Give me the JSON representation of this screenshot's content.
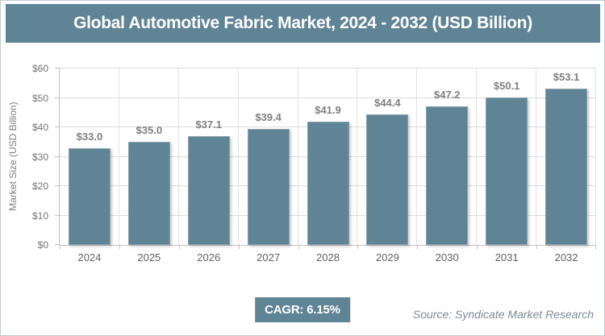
{
  "header": {
    "title": "Global Automotive Fabric Market, 2024 - 2032 (USD Billion)"
  },
  "chart_data": {
    "type": "bar",
    "title": "Global Automotive Fabric Market, 2024 - 2032 (USD Billion)",
    "categories": [
      "2024",
      "2025",
      "2026",
      "2027",
      "2028",
      "2029",
      "2030",
      "2031",
      "2032"
    ],
    "values": [
      33.0,
      35.0,
      37.1,
      39.4,
      41.9,
      44.4,
      47.2,
      50.1,
      53.1
    ],
    "bar_labels": [
      "$33.0",
      "$35.0",
      "$37.1",
      "$39.4",
      "$41.9",
      "$44.4",
      "$47.2",
      "$50.1",
      "$53.1"
    ],
    "xlabel": "",
    "ylabel": "Market Size (USD Billion)",
    "ylim": [
      0,
      60
    ],
    "y_tick_step": 10,
    "y_tick_labels": [
      "$0",
      "$10",
      "$20",
      "$30",
      "$40",
      "$50",
      "$60"
    ],
    "grid": true,
    "legend": "none",
    "bar_color": "#5f8496"
  },
  "footer": {
    "cagr_label": "CAGR: 6.15%",
    "source": "Source: Syndicate Market Research"
  },
  "colors": {
    "accent": "#5f8496",
    "gridline": "#dcdcdc",
    "axis_line": "#c2c2c2",
    "tick_label": "#737373",
    "data_label": "#7f7f7f",
    "source_text": "#7b8c98",
    "title_text": "#ffffff"
  }
}
